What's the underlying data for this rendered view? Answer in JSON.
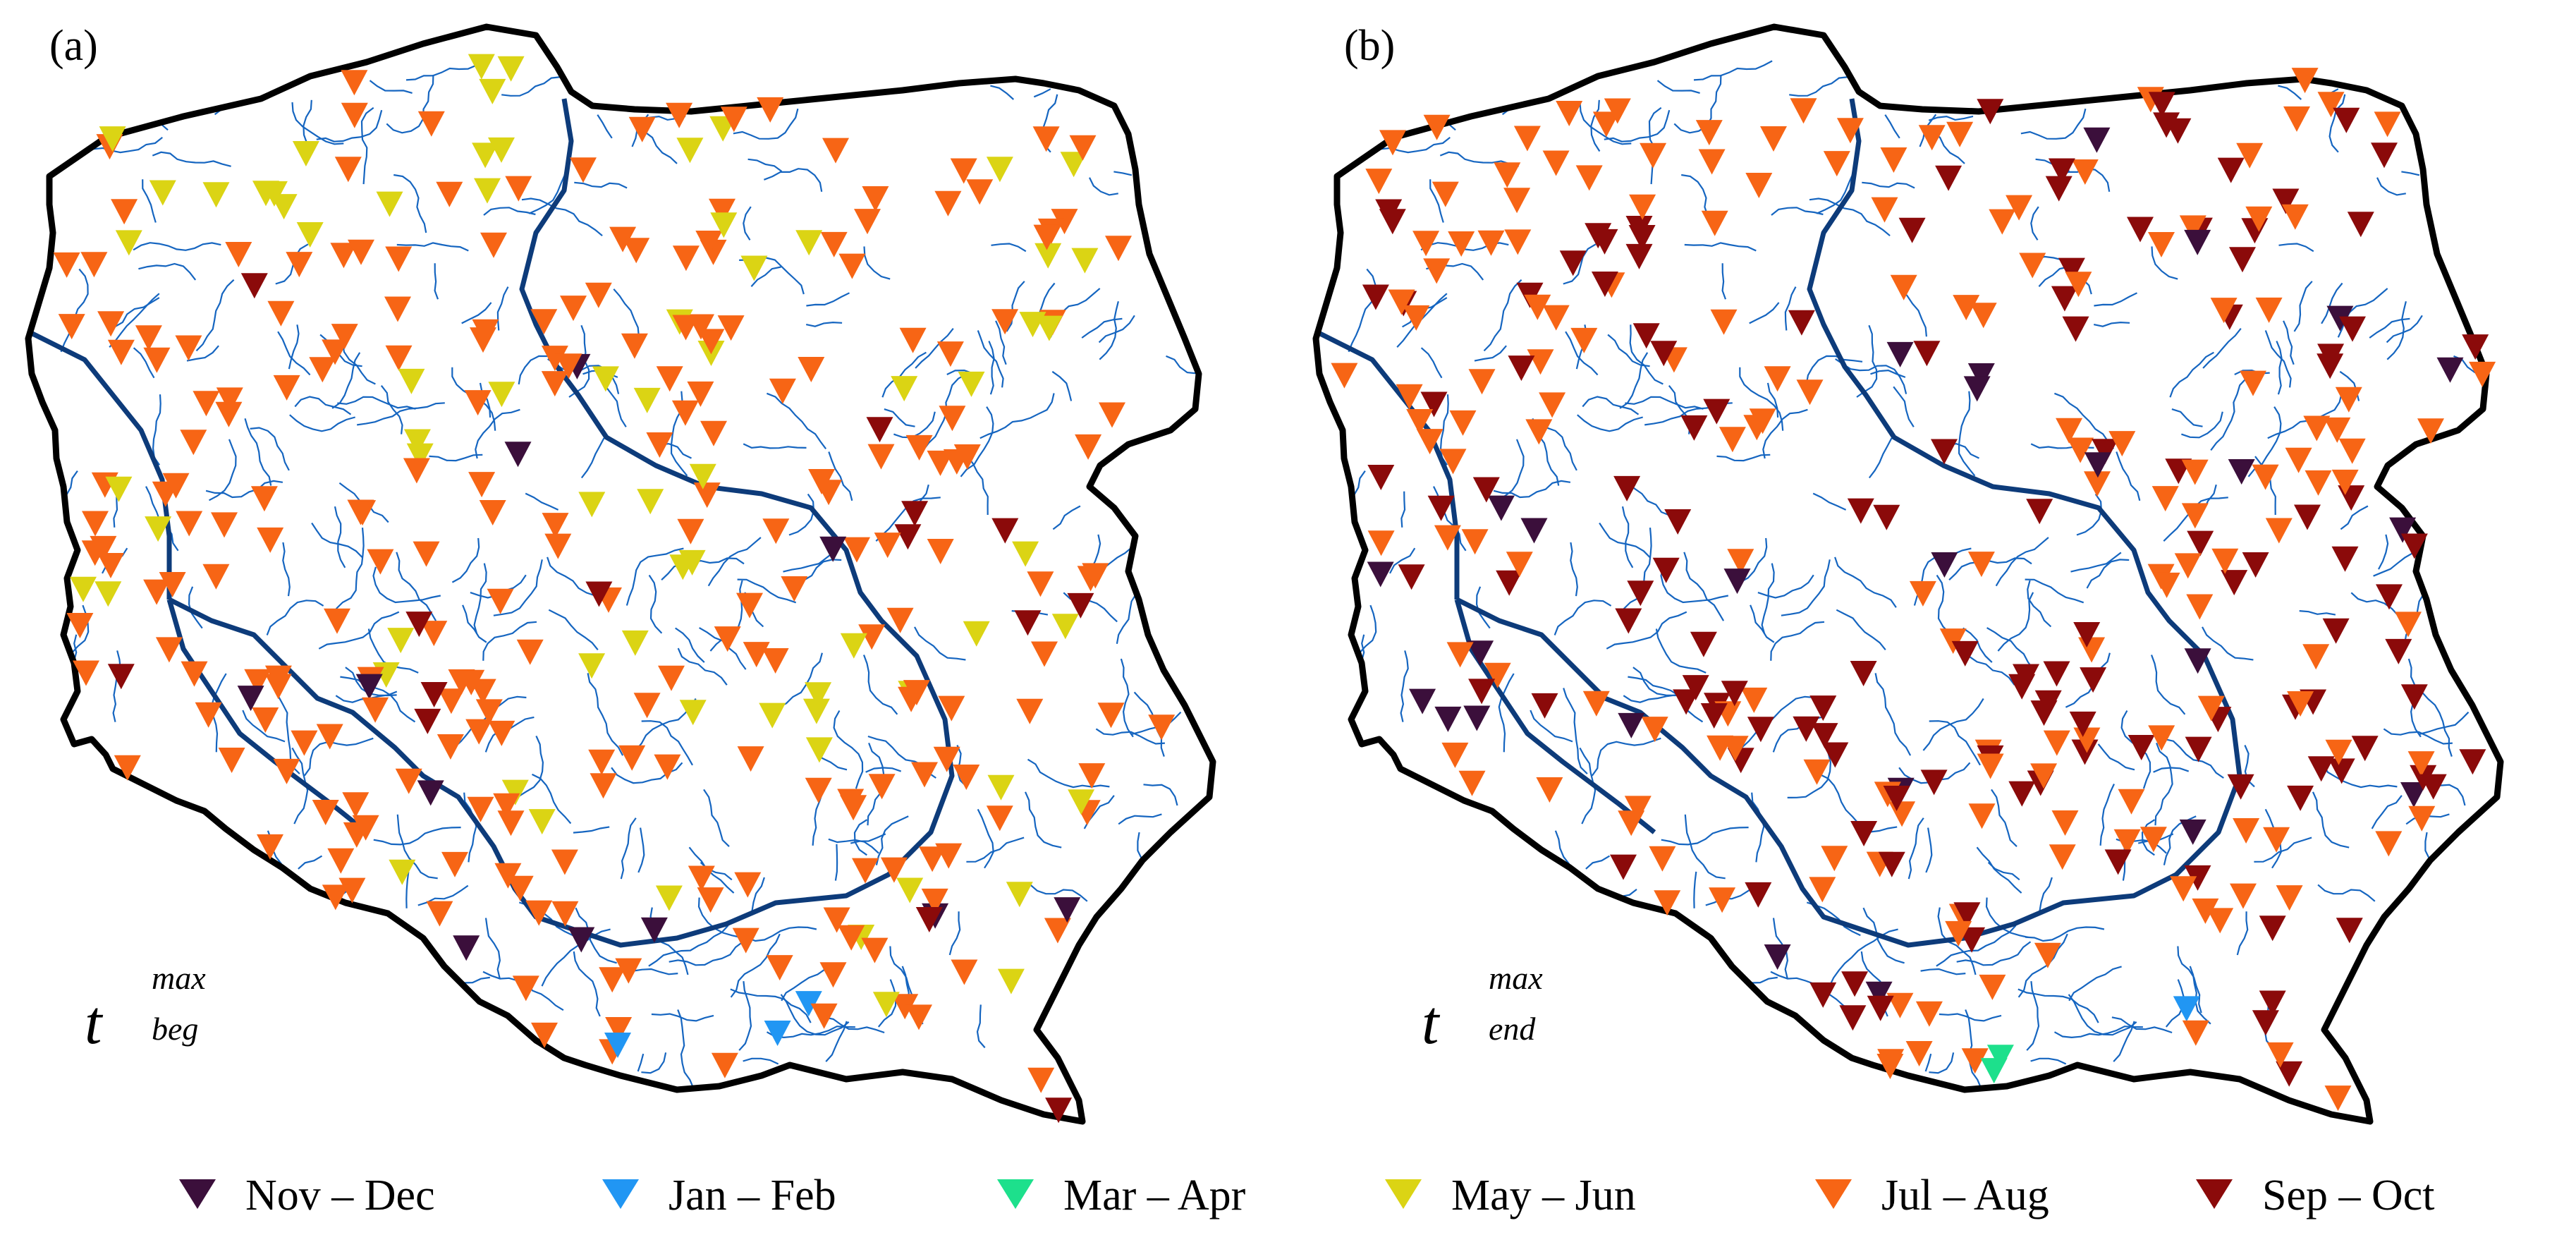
{
  "panels": [
    {
      "id": "a",
      "label": "(a)",
      "var_sup": "max",
      "var_sub": "beg"
    },
    {
      "id": "b",
      "label": "(b)",
      "var_sup": "max",
      "var_sub": "end"
    }
  ],
  "var_symbol": "t",
  "legend": [
    {
      "label": "Nov – Dec",
      "color": "#3b0f3b"
    },
    {
      "label": "Jan – Feb",
      "color": "#2196f3"
    },
    {
      "label": "Mar – Apr",
      "color": "#1de08c"
    },
    {
      "label": "May – Jun",
      "color": "#dbd414"
    },
    {
      "label": "Jul – Aug",
      "color": "#f76515"
    },
    {
      "label": "Sep – Oct",
      "color": "#8b0a0a"
    }
  ],
  "colors": {
    "border": "#000000",
    "river_main": "#0d3b7a",
    "river_minor": "#1565c0"
  },
  "icons": {
    "station_marker": "downward-triangle-icon"
  }
}
